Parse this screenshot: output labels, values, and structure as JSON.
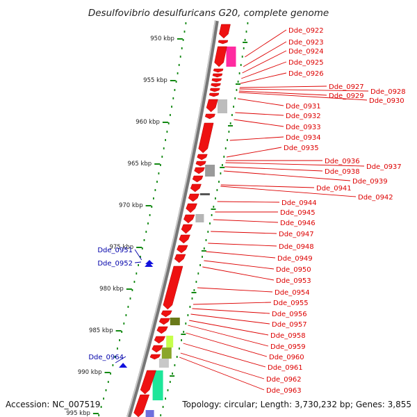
{
  "title": "Desulfovibrio desulfuricans G20, complete genome",
  "accession": "Accession: NC_007519",
  "topology": "Topology: circular; Length: 3,730,232 bp; Genes: 3,855",
  "colors": {
    "forward_gene": "#ee1111",
    "reverse_gene": "#1111dd",
    "label_forward": "#dd0000",
    "label_reverse": "#0000aa",
    "ruler": "#118811",
    "backbone": "#777777"
  },
  "ticks": [
    "950 kbp",
    "955 kbp",
    "960 kbp",
    "965 kbp",
    "970 kbp",
    "975 kbp",
    "980 kbp",
    "985 kbp",
    "990 kbp",
    "995 kbp"
  ],
  "right_labels": [
    "Dde_0922",
    "Dde_0923",
    "Dde_0924",
    "Dde_0925",
    "Dde_0926",
    "Dde_0927",
    "Dde_0928",
    "Dde_0929",
    "Dde_0930",
    "Dde_0931",
    "Dde_0932",
    "Dde_0933",
    "Dde_0934",
    "Dde_0935",
    "Dde_0936",
    "Dde_0937",
    "Dde_0938",
    "Dde_0939",
    "Dde_0941",
    "Dde_0942",
    "Dde_0944",
    "Dde_0945",
    "Dde_0946",
    "Dde_0947",
    "Dde_0948",
    "Dde_0949",
    "Dde_0950",
    "Dde_0953",
    "Dde_0954",
    "Dde_0955",
    "Dde_0956",
    "Dde_0957",
    "Dde_0958",
    "Dde_0959",
    "Dde_0960",
    "Dde_0961",
    "Dde_0962",
    "Dde_0963"
  ],
  "left_labels": [
    "Dde_0951",
    "Dde_0952",
    "Dde_0964"
  ]
}
